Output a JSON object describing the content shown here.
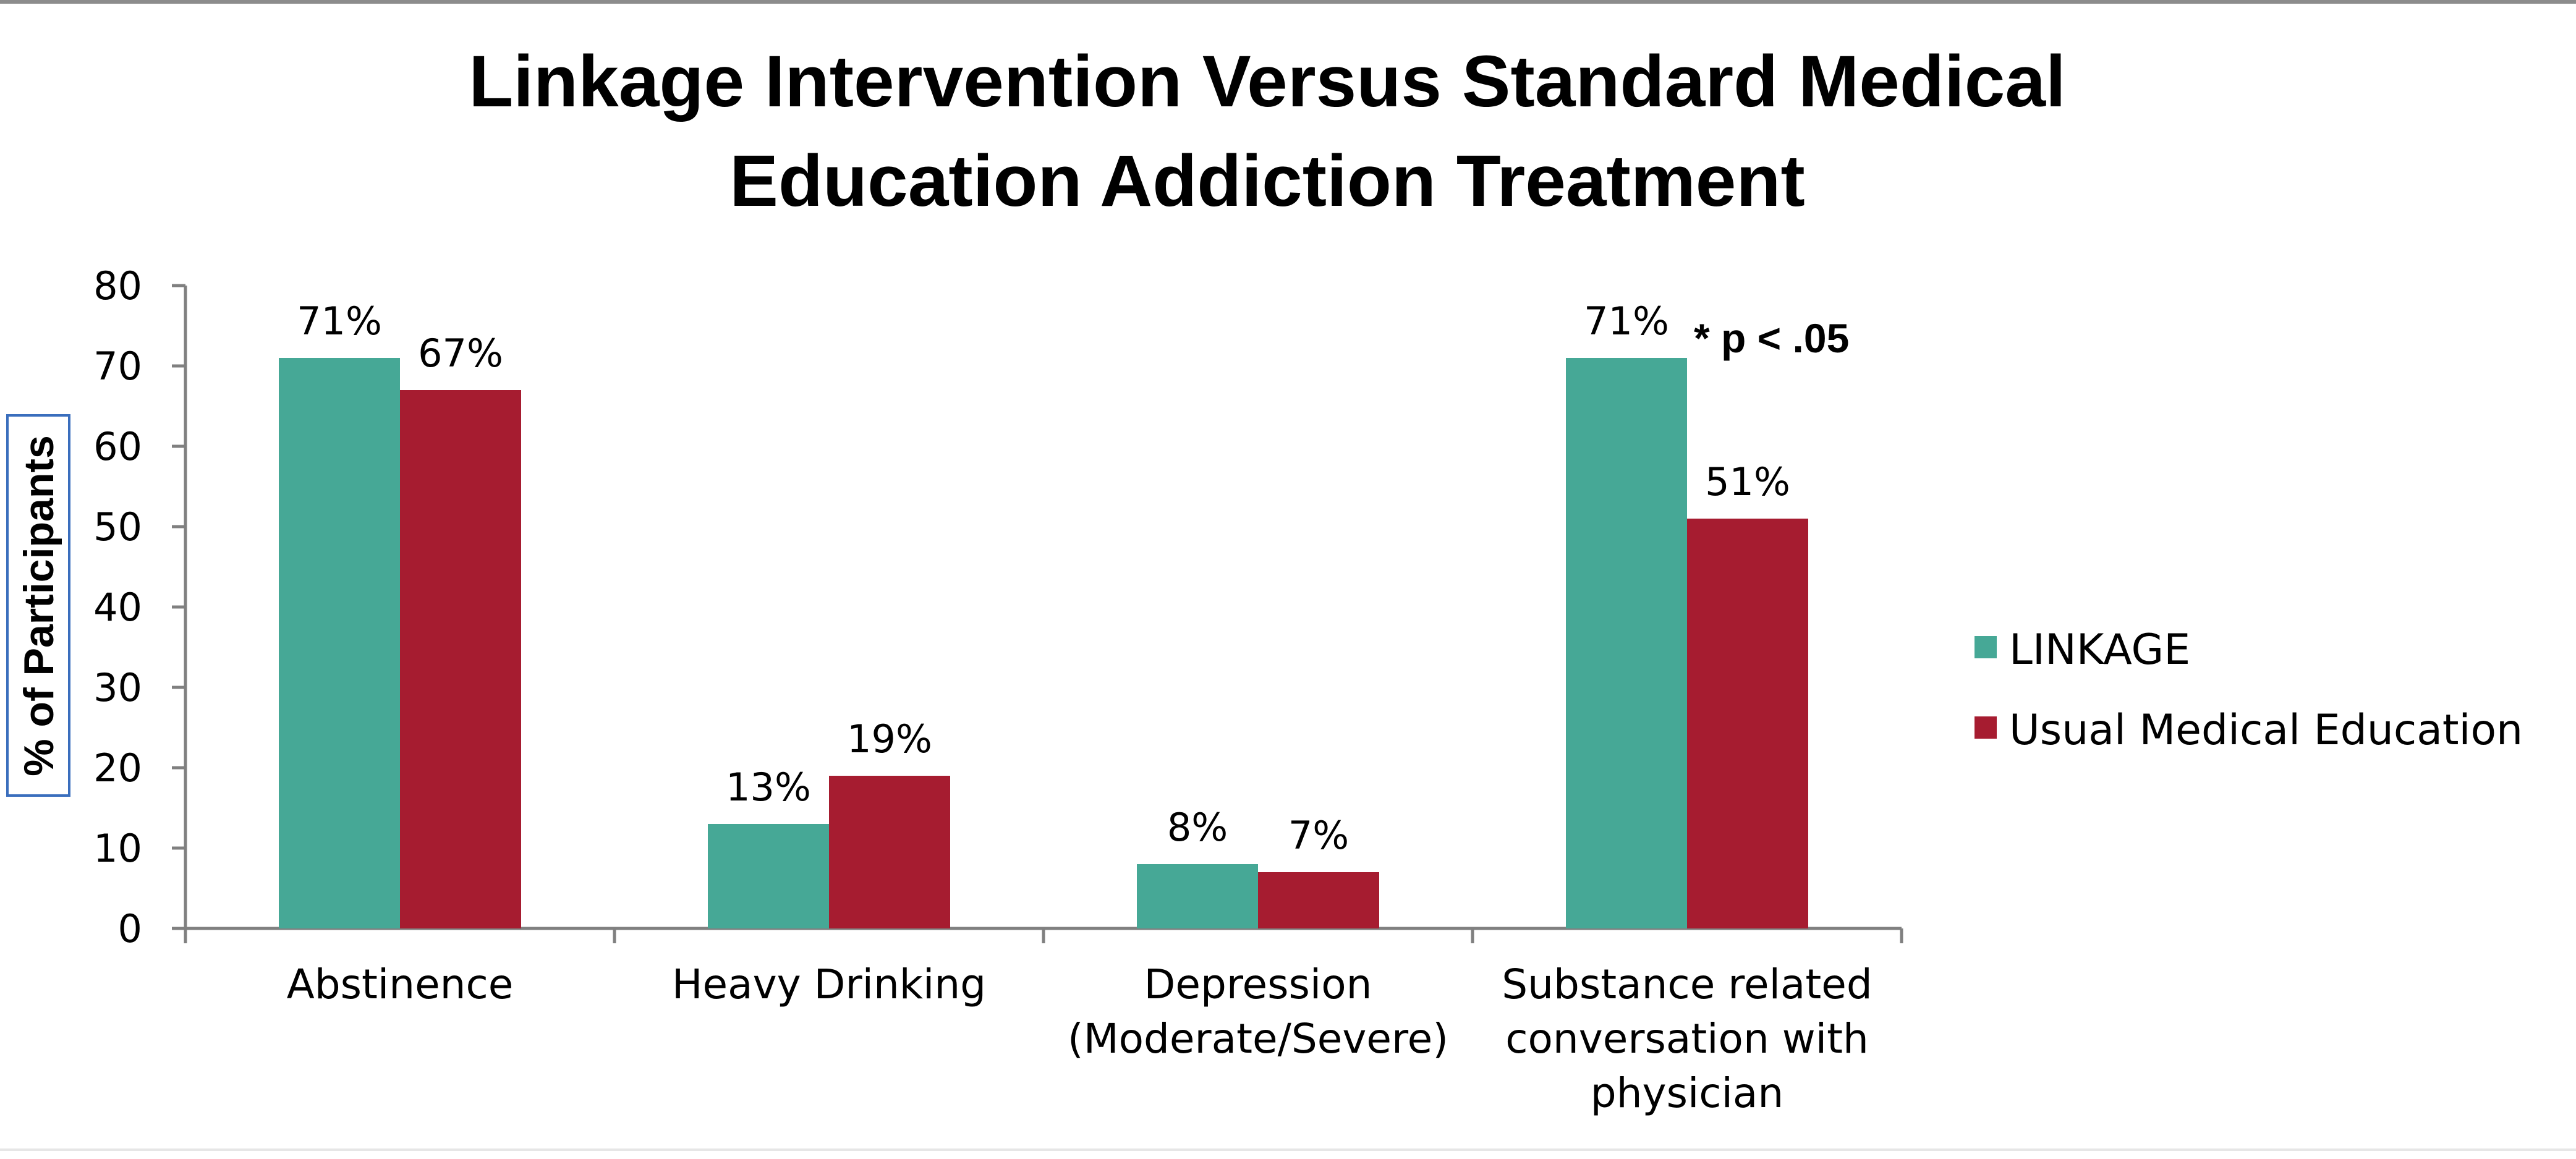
{
  "chart_data": {
    "type": "bar",
    "title": [
      "Linkage Intervention Versus Standard Medical",
      "Education Addiction Treatment"
    ],
    "ylabel": "% of Participants",
    "xlabel": "",
    "ylim": [
      0,
      80
    ],
    "yticks": [
      0,
      10,
      20,
      30,
      40,
      50,
      60,
      70,
      80
    ],
    "categories": [
      [
        "Abstinence"
      ],
      [
        "Heavy Drinking"
      ],
      [
        "Depression",
        "(Moderate/Severe)"
      ],
      [
        "Substance related",
        "conversation with",
        "physician"
      ]
    ],
    "series": [
      {
        "name": "LINKAGE",
        "color": "#46A896",
        "values": [
          71,
          13,
          8,
          71
        ],
        "labels": [
          "71%",
          "13%",
          "8%",
          "71%"
        ]
      },
      {
        "name": "Usual Medical Education",
        "color": "#A61C30",
        "values": [
          67,
          19,
          7,
          51
        ],
        "labels": [
          "67%",
          "19%",
          "7%",
          "51%"
        ]
      }
    ],
    "annotation": {
      "text": "* p < .05",
      "category_index": 3
    },
    "legend_position": "right",
    "grid": false
  }
}
